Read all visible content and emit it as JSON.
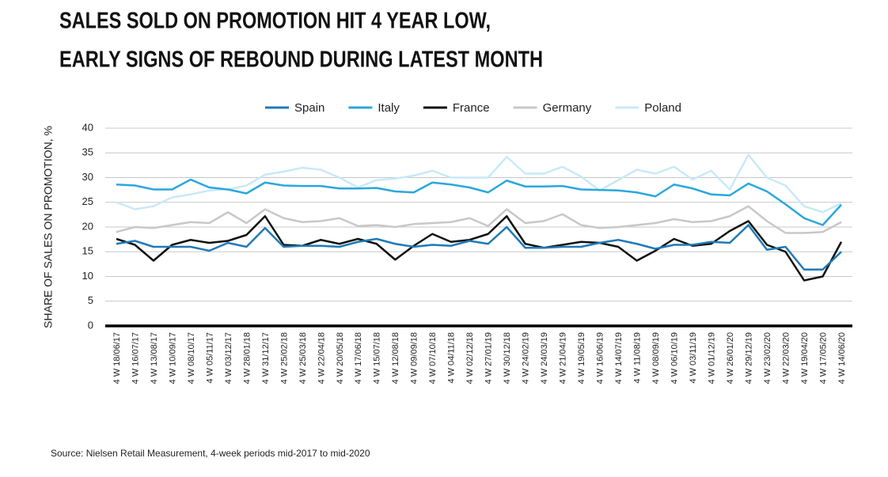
{
  "chart_data": {
    "type": "line",
    "title_lines": [
      "SALES SOLD ON PROMOTION  HIT 4 YEAR LOW,",
      "EARLY SIGNS OF REBOUND DURING LATEST MONTH"
    ],
    "y_label": "SHARE OF SALES ON PROMOTION, %",
    "source": "Source: Nielsen Retail Measurement, 4-week periods mid-2017 to mid-2020",
    "categories": [
      "4 W 18/06/17",
      "4 W 16/07/17",
      "4 W 13/08/17",
      "4 W 10/09/17",
      "4 W 08/10/17",
      "4 W 05/11/17",
      "4 W 03/12/17",
      "4 W 28/01/18",
      "4 W 31/12/17",
      "4 W 25/02/18",
      "4 W 25/03/18",
      "4 W 22/04/18",
      "4 W 20/05/18",
      "4 W 17/06/18",
      "4 W 15/07/18",
      "4 W 12/08/18",
      "4 W 09/09/18",
      "4 W 07/10/18",
      "4 W 04/11/18",
      "4 W 02/12/18",
      "4 W 27/01/19",
      "4 W 30/12/18",
      "4 W 24/02/19",
      "4 W 24/03/19",
      "4 W 21/04/19",
      "4 W 19/05/19",
      "4 W 16/06/19",
      "4 W 14/07/19",
      "4 W 11/08/19",
      "4 W 08/09/19",
      "4 W 06/10/19",
      "4 W 03/11/19",
      "4 W 01/12/19",
      "4 W 26/01/20",
      "4 W 29/12/19",
      "4 W 23/02/20",
      "4 W 22/03/20",
      "4 W 19/04/20",
      "4 W 17/05/20",
      "4 W 14/06/20"
    ],
    "series": [
      {
        "name": "Spain",
        "color": "#1f7ab8",
        "values": [
          16.6,
          17.2,
          16,
          16,
          16,
          15.2,
          16.8,
          16,
          19.8,
          16,
          16.2,
          16.2,
          16,
          17,
          17.6,
          16.6,
          16,
          16.4,
          16.2,
          17.2,
          16.6,
          20,
          15.8,
          15.8,
          16,
          16,
          16.8,
          17.4,
          16.6,
          15.6,
          16.4,
          16.4,
          17,
          16.8,
          20.4,
          15.4,
          16,
          11.4,
          11.4,
          15
        ]
      },
      {
        "name": "Italy",
        "color": "#2aa7dc",
        "values": [
          28.6,
          28.4,
          27.6,
          27.6,
          29.6,
          28,
          27.6,
          26.8,
          29,
          28.4,
          28.3,
          28.3,
          27.8,
          27.8,
          27.9,
          27.2,
          27,
          29,
          28.6,
          28,
          27,
          29.4,
          28.2,
          28.2,
          28.3,
          27.6,
          27.5,
          27.4,
          27,
          26.2,
          28.6,
          27.8,
          26.6,
          26.4,
          28.8,
          27.2,
          24.6,
          21.8,
          20.4,
          24.5
        ]
      },
      {
        "name": "France",
        "color": "#111111",
        "values": [
          17.6,
          16.4,
          13.2,
          16.4,
          17.4,
          16.8,
          17.2,
          18.4,
          22.2,
          16.4,
          16.2,
          17.4,
          16.6,
          17.6,
          16.6,
          13.4,
          16.2,
          18.6,
          17,
          17.4,
          18.6,
          22.2,
          16.6,
          15.8,
          16.4,
          17,
          16.8,
          16,
          13.2,
          15.2,
          17.6,
          16.2,
          16.6,
          19.2,
          21.2,
          16.4,
          15,
          9.2,
          10,
          17
        ]
      },
      {
        "name": "Germany",
        "color": "#c8c8c8",
        "values": [
          19,
          20,
          19.8,
          20.4,
          21,
          20.8,
          23,
          20.8,
          23.6,
          21.8,
          21,
          21.2,
          21.8,
          20.2,
          20.4,
          20,
          20.6,
          20.8,
          21,
          21.8,
          20.2,
          23.6,
          20.8,
          21.2,
          22.6,
          20.4,
          19.8,
          20,
          20.4,
          20.8,
          21.6,
          21,
          21.2,
          22.2,
          24.2,
          21.2,
          18.8,
          18.8,
          19,
          21
        ]
      },
      {
        "name": "Poland",
        "color": "#c9e9f7",
        "values": [
          25,
          23.6,
          24.2,
          26,
          26.6,
          27.4,
          27.6,
          28.4,
          30.6,
          31.2,
          32,
          31.6,
          30,
          28,
          29.5,
          29.8,
          30.4,
          31.4,
          30,
          30,
          30,
          34.2,
          30.8,
          30.8,
          32.2,
          30.2,
          27.4,
          29.5,
          31.6,
          30.8,
          32.2,
          29.6,
          31.4,
          27.6,
          34.6,
          30,
          28.4,
          24.2,
          23,
          24.8
        ]
      }
    ],
    "ylim": [
      0,
      40
    ],
    "yticks": [
      0,
      5,
      10,
      15,
      20,
      25,
      30,
      35,
      40
    ],
    "grid": true,
    "legend": "top"
  }
}
